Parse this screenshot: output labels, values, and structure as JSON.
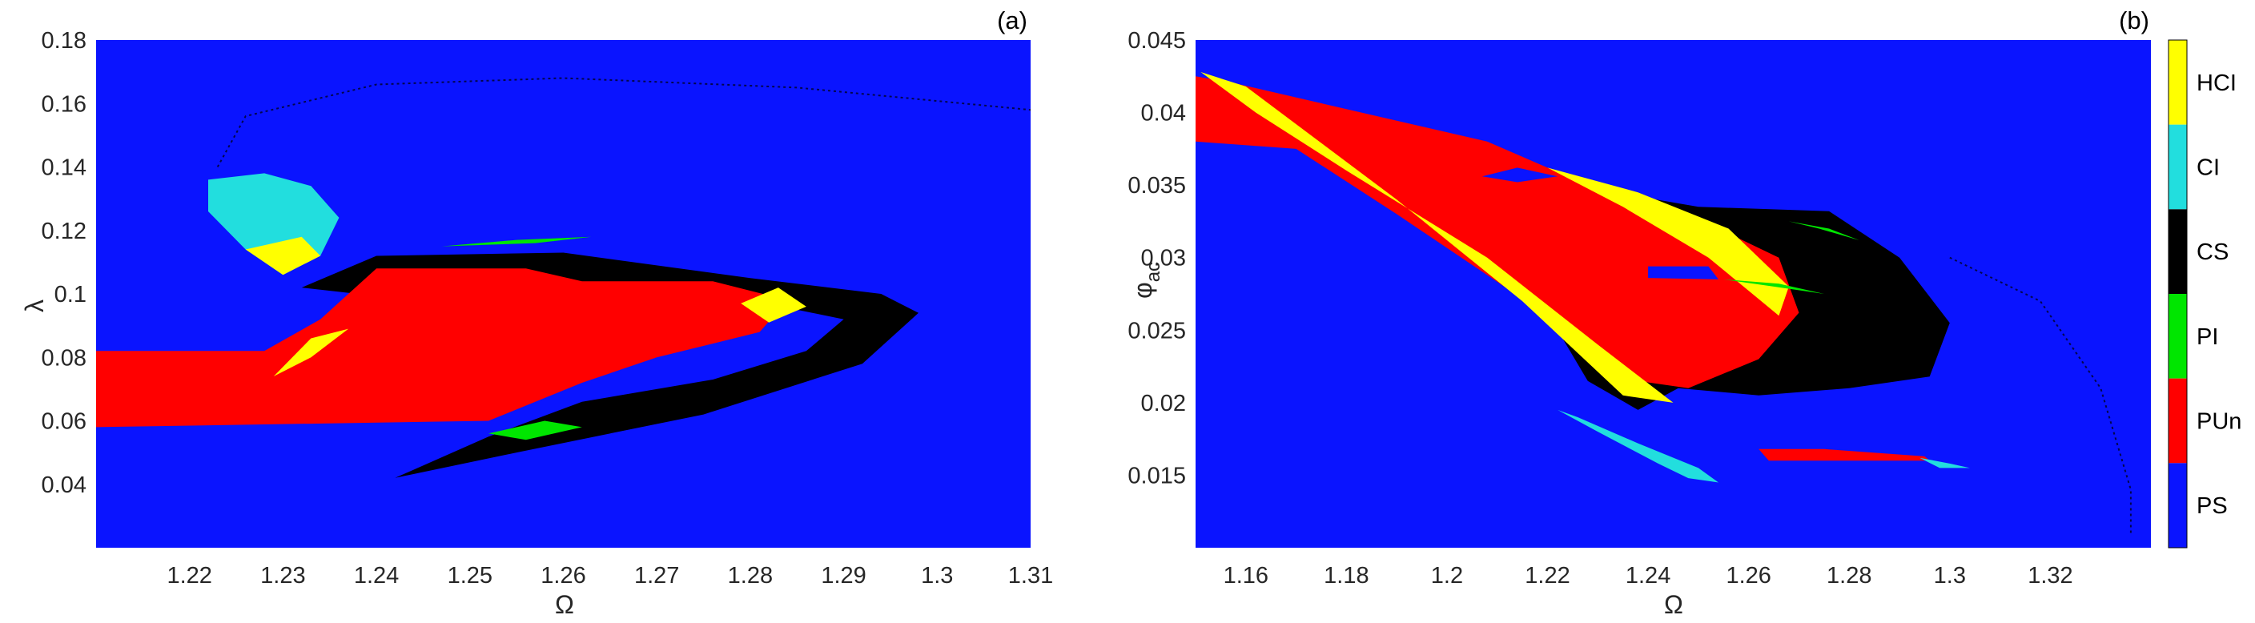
{
  "colors": {
    "PS": "#0a14ff",
    "PUn": "#ff0000",
    "PI": "#00e600",
    "CS": "#000000",
    "CI": "#22dede",
    "HCI": "#ffff00"
  },
  "chart_data": [
    {
      "type": "heatmap",
      "panel_label": "(a)",
      "xlabel": "Ω",
      "ylabel": "λ",
      "xlim": [
        1.21,
        1.31
      ],
      "ylim": [
        0.02,
        0.18
      ],
      "xticks": [
        1.22,
        1.23,
        1.24,
        1.25,
        1.26,
        1.27,
        1.28,
        1.29,
        1.3,
        1.31
      ],
      "xtick_labels": [
        "1.22",
        "1.23",
        "1.24",
        "1.25",
        "1.26",
        "1.27",
        "1.28",
        "1.29",
        "1.3",
        "1.31"
      ],
      "yticks": [
        0.04,
        0.06,
        0.08,
        0.1,
        0.12,
        0.14,
        0.16,
        0.18
      ],
      "ytick_labels": [
        "0.04",
        "0.06",
        "0.08",
        "0.1",
        "0.12",
        "0.14",
        "0.16",
        "0.18"
      ],
      "background_class": "PS",
      "regions": [
        {
          "class": "CS",
          "points": [
            [
              1.232,
              0.102
            ],
            [
              1.24,
              0.112
            ],
            [
              1.26,
              0.113
            ],
            [
              1.28,
              0.105
            ],
            [
              1.294,
              0.1
            ],
            [
              1.298,
              0.094
            ],
            [
              1.292,
              0.078
            ],
            [
              1.275,
              0.062
            ],
            [
              1.255,
              0.05
            ],
            [
              1.242,
              0.042
            ],
            [
              1.252,
              0.055
            ],
            [
              1.262,
              0.066
            ],
            [
              1.276,
              0.073
            ],
            [
              1.286,
              0.082
            ],
            [
              1.29,
              0.092
            ],
            [
              1.28,
              0.098
            ],
            [
              1.258,
              0.104
            ],
            [
              1.238,
              0.1
            ]
          ]
        },
        {
          "class": "PUn",
          "points": [
            [
              1.21,
              0.082
            ],
            [
              1.228,
              0.082
            ],
            [
              1.234,
              0.092
            ],
            [
              1.24,
              0.108
            ],
            [
              1.256,
              0.108
            ],
            [
              1.262,
              0.104
            ],
            [
              1.276,
              0.104
            ],
            [
              1.284,
              0.098
            ],
            [
              1.281,
              0.088
            ],
            [
              1.27,
              0.08
            ],
            [
              1.262,
              0.072
            ],
            [
              1.252,
              0.06
            ],
            [
              1.21,
              0.058
            ]
          ]
        },
        {
          "class": "CI",
          "points": [
            [
              1.222,
              0.136
            ],
            [
              1.228,
              0.138
            ],
            [
              1.233,
              0.134
            ],
            [
              1.236,
              0.124
            ],
            [
              1.234,
              0.112
            ],
            [
              1.23,
              0.106
            ],
            [
              1.226,
              0.114
            ],
            [
              1.222,
              0.126
            ]
          ]
        },
        {
          "class": "HCI",
          "points": [
            [
              1.226,
              0.114
            ],
            [
              1.23,
              0.106
            ],
            [
              1.234,
              0.112
            ],
            [
              1.232,
              0.118
            ]
          ]
        },
        {
          "class": "HCI",
          "points": [
            [
              1.229,
              0.074
            ],
            [
              1.233,
              0.08
            ],
            [
              1.237,
              0.089
            ],
            [
              1.233,
              0.086
            ]
          ]
        },
        {
          "class": "HCI",
          "points": [
            [
              1.279,
              0.097
            ],
            [
              1.283,
              0.102
            ],
            [
              1.286,
              0.096
            ],
            [
              1.282,
              0.091
            ]
          ]
        },
        {
          "class": "PI",
          "points": [
            [
              1.247,
              0.115
            ],
            [
              1.255,
              0.117
            ],
            [
              1.263,
              0.118
            ],
            [
              1.257,
              0.116
            ]
          ]
        },
        {
          "class": "PI",
          "points": [
            [
              1.252,
              0.056
            ],
            [
              1.258,
              0.06
            ],
            [
              1.262,
              0.058
            ],
            [
              1.256,
              0.054
            ]
          ]
        }
      ],
      "curves": [
        {
          "class": "CS",
          "points": [
            [
              1.223,
              0.14
            ],
            [
              1.226,
              0.156
            ],
            [
              1.24,
              0.166
            ],
            [
              1.26,
              0.168
            ],
            [
              1.285,
              0.165
            ],
            [
              1.31,
              0.158
            ]
          ]
        }
      ]
    },
    {
      "type": "heatmap",
      "panel_label": "(b)",
      "xlabel": "Ω",
      "ylabel": "φ_ac",
      "ylabel_main": "φ",
      "ylabel_sub": "ac",
      "xlim": [
        1.15,
        1.34
      ],
      "ylim": [
        0.01,
        0.045
      ],
      "xticks": [
        1.16,
        1.18,
        1.2,
        1.22,
        1.24,
        1.26,
        1.28,
        1.3,
        1.32
      ],
      "xtick_labels": [
        "1.16",
        "1.18",
        "1.2",
        "1.22",
        "1.24",
        "1.26",
        "1.28",
        "1.3",
        "1.32"
      ],
      "yticks": [
        0.015,
        0.02,
        0.025,
        0.03,
        0.035,
        0.04,
        0.045
      ],
      "ytick_labels": [
        "0.015",
        "0.02",
        "0.025",
        "0.03",
        "0.035",
        "0.04",
        "0.045"
      ],
      "background_class": "PS",
      "regions": [
        {
          "class": "CS",
          "points": [
            [
              1.21,
              0.036
            ],
            [
              1.225,
              0.035
            ],
            [
              1.25,
              0.0335
            ],
            [
              1.276,
              0.0332
            ],
            [
              1.29,
              0.03
            ],
            [
              1.3,
              0.0255
            ],
            [
              1.296,
              0.0218
            ],
            [
              1.28,
              0.021
            ],
            [
              1.262,
              0.0205
            ],
            [
              1.246,
              0.021
            ],
            [
              1.238,
              0.0195
            ],
            [
              1.228,
              0.0215
            ],
            [
              1.222,
              0.025
            ]
          ]
        },
        {
          "class": "PUn",
          "points": [
            [
              1.15,
              0.0425
            ],
            [
              1.158,
              0.042
            ],
            [
              1.208,
              0.038
            ],
            [
              1.22,
              0.0362
            ],
            [
              1.248,
              0.033
            ],
            [
              1.266,
              0.03
            ],
            [
              1.27,
              0.0262
            ],
            [
              1.262,
              0.023
            ],
            [
              1.248,
              0.021
            ],
            [
              1.238,
              0.0215
            ],
            [
              1.22,
              0.026
            ],
            [
              1.19,
              0.033
            ],
            [
              1.17,
              0.0375
            ],
            [
              1.15,
              0.038
            ]
          ]
        },
        {
          "class": "HCI",
          "points": [
            [
              1.22,
              0.0362
            ],
            [
              1.238,
              0.0345
            ],
            [
              1.256,
              0.032
            ],
            [
              1.268,
              0.028
            ],
            [
              1.266,
              0.026
            ],
            [
              1.252,
              0.03
            ],
            [
              1.235,
              0.0335
            ]
          ]
        },
        {
          "class": "HCI",
          "points": [
            [
              1.151,
              0.0428
            ],
            [
              1.16,
              0.0418
            ],
            [
              1.19,
              0.034
            ],
            [
              1.215,
              0.027
            ],
            [
              1.235,
              0.0205
            ],
            [
              1.245,
              0.02
            ],
            [
              1.23,
              0.024
            ],
            [
              1.208,
              0.03
            ],
            [
              1.18,
              0.036
            ],
            [
              1.162,
              0.04
            ]
          ]
        },
        {
          "class": "CI",
          "points": [
            [
              1.222,
              0.0195
            ],
            [
              1.23,
              0.018
            ],
            [
              1.242,
              0.0158
            ],
            [
              1.248,
              0.0148
            ],
            [
              1.254,
              0.0145
            ],
            [
              1.25,
              0.0155
            ],
            [
              1.238,
              0.0172
            ],
            [
              1.226,
              0.019
            ]
          ]
        },
        {
          "class": "PUn",
          "points": [
            [
              1.262,
              0.0168
            ],
            [
              1.275,
              0.0168
            ],
            [
              1.295,
              0.0163
            ],
            [
              1.296,
              0.016
            ],
            [
              1.275,
              0.016
            ],
            [
              1.264,
              0.016
            ]
          ]
        },
        {
          "class": "CI",
          "points": [
            [
              1.294,
              0.0162
            ],
            [
              1.3,
              0.0158
            ],
            [
              1.304,
              0.0155
            ],
            [
              1.298,
              0.0155
            ]
          ]
        },
        {
          "class": "PI",
          "points": [
            [
              1.255,
              0.0285
            ],
            [
              1.265,
              0.028
            ],
            [
              1.275,
              0.0275
            ],
            [
              1.266,
              0.0282
            ]
          ]
        },
        {
          "class": "PI",
          "points": [
            [
              1.268,
              0.0325
            ],
            [
              1.276,
              0.032
            ],
            [
              1.282,
              0.0312
            ],
            [
              1.274,
              0.032
            ]
          ]
        },
        {
          "class": "PS",
          "points": [
            [
              1.24,
              0.0294
            ],
            [
              1.252,
              0.0294
            ],
            [
              1.254,
              0.0285
            ],
            [
              1.24,
              0.0286
            ]
          ]
        },
        {
          "class": "PS",
          "points": [
            [
              1.207,
              0.0356
            ],
            [
              1.214,
              0.0362
            ],
            [
              1.222,
              0.0356
            ],
            [
              1.214,
              0.0352
            ]
          ]
        }
      ],
      "curves": [
        {
          "class": "CS",
          "points": [
            [
              1.3,
              0.03
            ],
            [
              1.318,
              0.027
            ],
            [
              1.33,
              0.021
            ],
            [
              1.336,
              0.014
            ],
            [
              1.336,
              0.011
            ]
          ]
        }
      ]
    }
  ],
  "colorbar": {
    "entries": [
      {
        "label": "HCI",
        "class": "HCI"
      },
      {
        "label": "CI",
        "class": "CI"
      },
      {
        "label": "CS",
        "class": "CS"
      },
      {
        "label": "PI",
        "class": "PI"
      },
      {
        "label": "PUn",
        "class": "PUn"
      },
      {
        "label": "PS",
        "class": "PS"
      }
    ]
  }
}
